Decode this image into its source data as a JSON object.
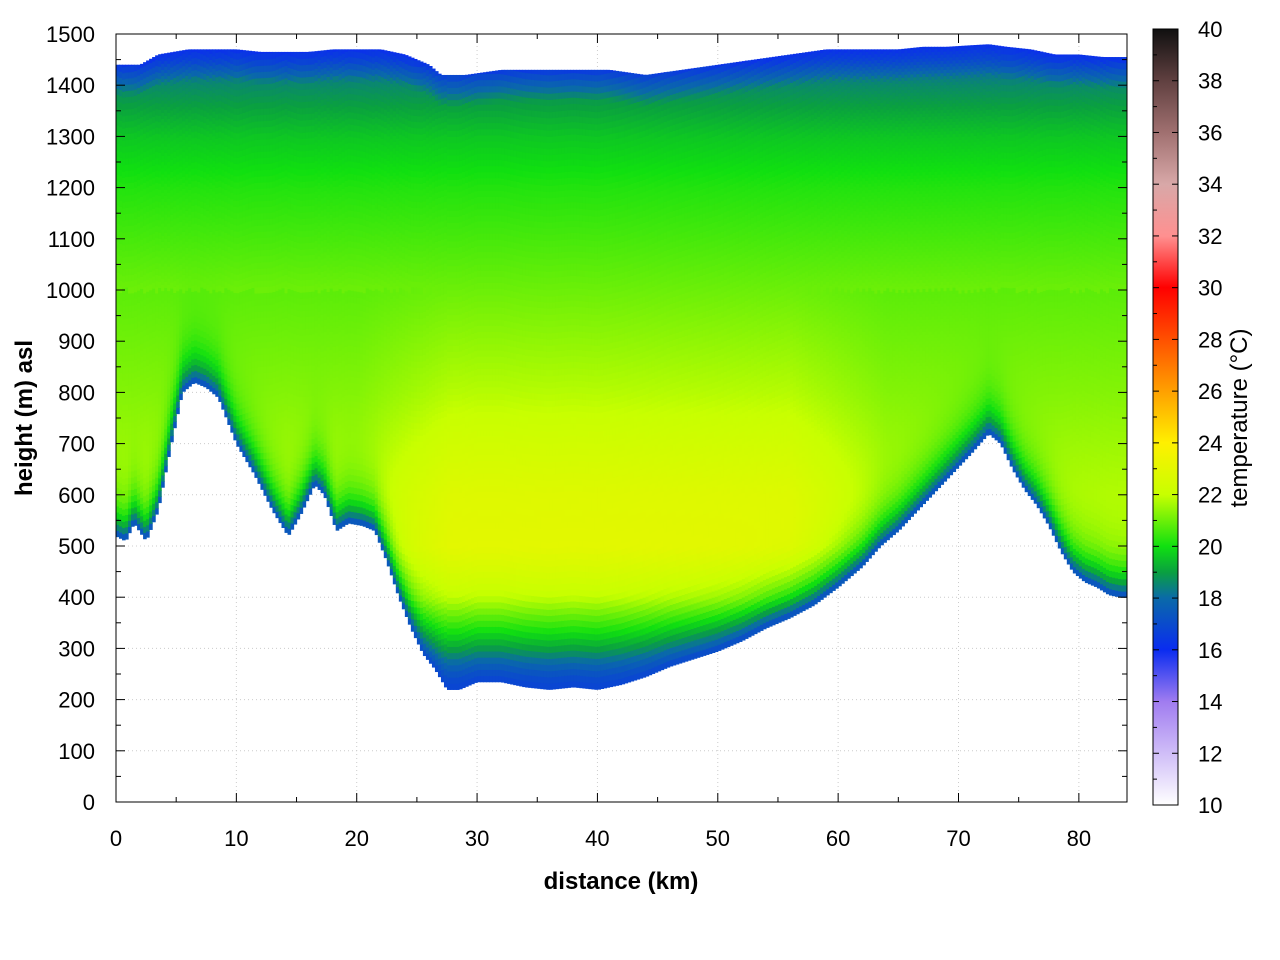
{
  "chart_data": {
    "type": "heatmap",
    "xlabel": "distance (km)",
    "ylabel": "height (m) asl",
    "colorbar_label": "temperature (°C)",
    "xlim": [
      0,
      84
    ],
    "ylim": [
      0,
      1500
    ],
    "clim": [
      10,
      40
    ],
    "x_ticks": [
      0,
      10,
      20,
      30,
      40,
      50,
      60,
      70,
      80
    ],
    "x_tick_labels": [
      "0",
      "10",
      "20",
      "30",
      "40",
      "50",
      "60",
      "70",
      "80"
    ],
    "y_ticks": [
      0,
      100,
      200,
      300,
      400,
      500,
      600,
      700,
      800,
      900,
      1000,
      1100,
      1200,
      1300,
      1400,
      1500
    ],
    "y_tick_labels": [
      "0",
      "100",
      "200",
      "300",
      "400",
      "500",
      "600",
      "700",
      "800",
      "900",
      "1000",
      "1100",
      "1200",
      "1300",
      "1400",
      "1500"
    ],
    "colorbar_ticks": [
      10,
      12,
      14,
      16,
      18,
      20,
      22,
      24,
      26,
      28,
      30,
      32,
      34,
      36,
      38,
      40
    ],
    "colorbar_tick_labels": [
      "10",
      "12",
      "14",
      "16",
      "18",
      "20",
      "22",
      "24",
      "26",
      "28",
      "30",
      "32",
      "34",
      "36",
      "38",
      "40"
    ],
    "grid": true,
    "colormap": [
      {
        "t": 10,
        "color": "#ffffff"
      },
      {
        "t": 14,
        "color": "#a07cf0"
      },
      {
        "t": 16,
        "color": "#0a2cf0"
      },
      {
        "t": 18,
        "color": "#0a6aa8"
      },
      {
        "t": 19,
        "color": "#0aa040"
      },
      {
        "t": 20,
        "color": "#10e010"
      },
      {
        "t": 22,
        "color": "#c8ff00"
      },
      {
        "t": 24,
        "color": "#fff000"
      },
      {
        "t": 26,
        "color": "#ffa000"
      },
      {
        "t": 28,
        "color": "#ff5000"
      },
      {
        "t": 30,
        "color": "#ff0000"
      },
      {
        "t": 32,
        "color": "#ff9090"
      },
      {
        "t": 34,
        "color": "#d8a8a8"
      },
      {
        "t": 36,
        "color": "#a07070"
      },
      {
        "t": 38,
        "color": "#604040"
      },
      {
        "t": 40,
        "color": "#101010"
      }
    ],
    "terrain_height": {
      "x": [
        0,
        0.8,
        1.5,
        2.5,
        3.5,
        4.5,
        5.5,
        6.5,
        7.5,
        8.5,
        10,
        11.5,
        13,
        14.3,
        15.3,
        16.5,
        17.3,
        18.3,
        19.3,
        20.5,
        21.5,
        22.5,
        23.5,
        24.5,
        25.5,
        26.5,
        27.5,
        28.5,
        30,
        32,
        34,
        36,
        38,
        40,
        42,
        44,
        46,
        48,
        50,
        52,
        54,
        56,
        58,
        60,
        62,
        63.5,
        65,
        67,
        69,
        71,
        72.5,
        73.5,
        74.5,
        75.5,
        76.5,
        77.5,
        78.5,
        79.5,
        80.5,
        81.5,
        82.5,
        83.5
      ],
      "y": [
        520,
        510,
        545,
        510,
        570,
        690,
        800,
        820,
        810,
        790,
        700,
        640,
        570,
        520,
        560,
        620,
        600,
        530,
        545,
        540,
        530,
        470,
        400,
        340,
        290,
        260,
        220,
        220,
        235,
        235,
        225,
        220,
        225,
        220,
        230,
        245,
        265,
        280,
        295,
        315,
        340,
        360,
        385,
        420,
        460,
        500,
        530,
        580,
        630,
        680,
        720,
        700,
        650,
        610,
        580,
        540,
        490,
        450,
        430,
        420,
        405,
        400
      ]
    },
    "top_boundary_height": {
      "x": [
        0,
        2,
        3.5,
        6,
        8,
        10,
        12,
        14,
        16,
        18,
        20,
        22,
        24,
        26,
        27,
        29,
        32,
        35,
        38,
        41,
        44,
        47,
        50,
        53,
        56,
        59,
        61,
        63,
        65,
        67,
        69,
        71,
        72.5,
        74,
        76,
        78,
        80,
        82,
        83.5
      ],
      "y": [
        1440,
        1440,
        1460,
        1470,
        1470,
        1470,
        1465,
        1465,
        1465,
        1470,
        1470,
        1470,
        1460,
        1440,
        1420,
        1420,
        1430,
        1430,
        1430,
        1430,
        1420,
        1430,
        1440,
        1450,
        1460,
        1470,
        1470,
        1470,
        1470,
        1475,
        1475,
        1478,
        1480,
        1475,
        1470,
        1460,
        1460,
        1455,
        1455
      ]
    },
    "temperature_by_height_m": {
      "heights": [
        1450,
        1400,
        1300,
        1200,
        1100,
        1000,
        900,
        800,
        700,
        600,
        500,
        400,
        300,
        230
      ],
      "valley_center_temps": [
        17.8,
        18.6,
        19.6,
        20.2,
        20.6,
        21.0,
        21.4,
        21.8,
        22.3,
        22.8,
        23.0,
        22.0,
        19.5,
        17.0
      ],
      "near_surface_temp_west": 16.5,
      "near_surface_temp_valley_floor": 16.8,
      "near_surface_temp_east": 16.5
    }
  }
}
